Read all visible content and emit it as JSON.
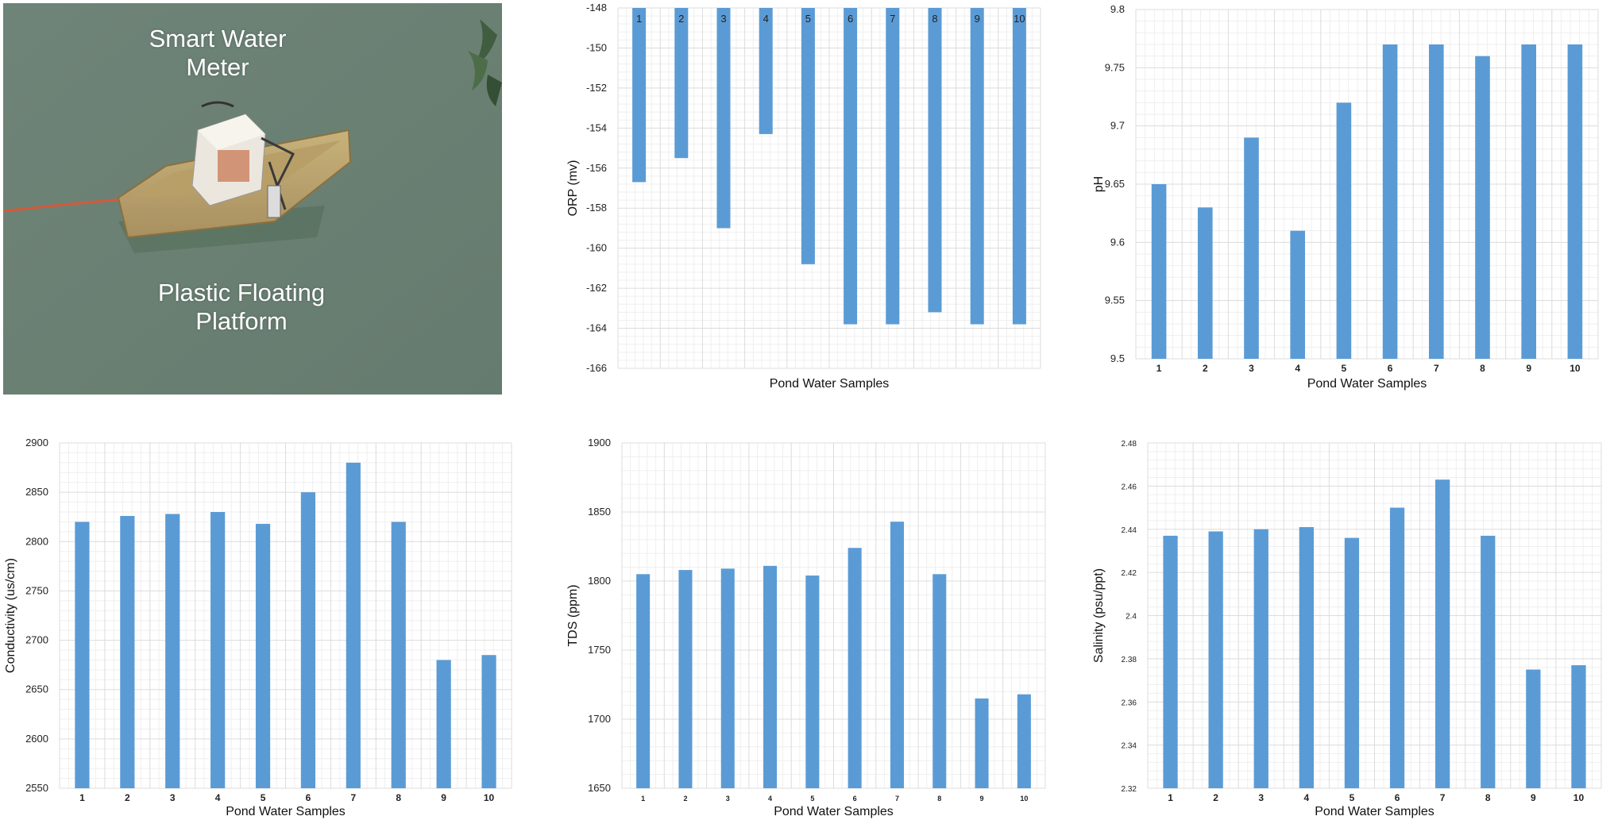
{
  "photo": {
    "label_top": [
      "Smart Water",
      "Meter"
    ],
    "label_bottom": [
      "Plastic Floating",
      "Platform"
    ]
  },
  "colors": {
    "bar": "#5b9bd5",
    "grid": "#dcdcdc",
    "grid_minor": "#efefef"
  },
  "chart_data": [
    {
      "id": "orp",
      "type": "bar",
      "ylabel": "ORP (mv)",
      "xlabel": "Pond Water Samples",
      "categories": [
        "1",
        "2",
        "3",
        "4",
        "5",
        "6",
        "7",
        "8",
        "9",
        "10"
      ],
      "values": [
        -156.7,
        -155.5,
        -159.0,
        -154.3,
        -160.8,
        -163.8,
        -163.8,
        -163.2,
        -163.8,
        -163.8
      ],
      "ylim": [
        -166,
        -148
      ],
      "yticks": [
        -148,
        -150,
        -152,
        -154,
        -156,
        -158,
        -160,
        -162,
        -164,
        -166
      ],
      "inverted": true,
      "category_labels_inside_bars": true,
      "grid": true
    },
    {
      "id": "ph",
      "type": "bar",
      "ylabel": "pH",
      "xlabel": "Pond Water Samples",
      "categories": [
        "1",
        "2",
        "3",
        "4",
        "5",
        "6",
        "7",
        "8",
        "9",
        "10"
      ],
      "values": [
        9.65,
        9.63,
        9.69,
        9.61,
        9.72,
        9.77,
        9.77,
        9.76,
        9.77,
        9.77
      ],
      "ylim": [
        9.5,
        9.8
      ],
      "yticks": [
        "9.5",
        "9.55",
        "9.6",
        "9.65",
        "9.7",
        "9.75",
        "9.8"
      ],
      "grid": true
    },
    {
      "id": "conductivity",
      "type": "bar",
      "ylabel": "Conductivity (us/cm)",
      "xlabel": "Pond Water Samples",
      "categories": [
        "1",
        "2",
        "3",
        "4",
        "5",
        "6",
        "7",
        "8",
        "9",
        "10"
      ],
      "values": [
        2820,
        2826,
        2828,
        2830,
        2818,
        2850,
        2880,
        2820,
        2680,
        2685
      ],
      "ylim": [
        2550,
        2900
      ],
      "yticks": [
        "2550",
        "2600",
        "2650",
        "2700",
        "2750",
        "2800",
        "2850",
        "2900"
      ],
      "grid": true
    },
    {
      "id": "tds",
      "type": "bar",
      "ylabel": "TDS (ppm)",
      "xlabel": "Pond Water Samples",
      "categories": [
        "1",
        "2",
        "3",
        "4",
        "5",
        "6",
        "7",
        "8",
        "9",
        "10"
      ],
      "values": [
        1805,
        1808,
        1809,
        1811,
        1804,
        1824,
        1843,
        1805,
        1715,
        1718
      ],
      "ylim": [
        1650,
        1900
      ],
      "yticks": [
        "1650",
        "1700",
        "1750",
        "1800",
        "1850",
        "1900"
      ],
      "grid": true
    },
    {
      "id": "salinity",
      "type": "bar",
      "ylabel": "Salinity (psu/ppt)",
      "xlabel": "Pond Water Samples",
      "categories": [
        "1",
        "2",
        "3",
        "4",
        "5",
        "6",
        "7",
        "8",
        "9",
        "10"
      ],
      "values": [
        2.437,
        2.439,
        2.44,
        2.441,
        2.436,
        2.45,
        2.463,
        2.437,
        2.375,
        2.377
      ],
      "ylim": [
        2.32,
        2.48
      ],
      "yticks": [
        "2.32",
        "2.34",
        "2.36",
        "2.38",
        "2.4",
        "2.42",
        "2.44",
        "2.46",
        "2.48"
      ],
      "grid": true
    }
  ]
}
